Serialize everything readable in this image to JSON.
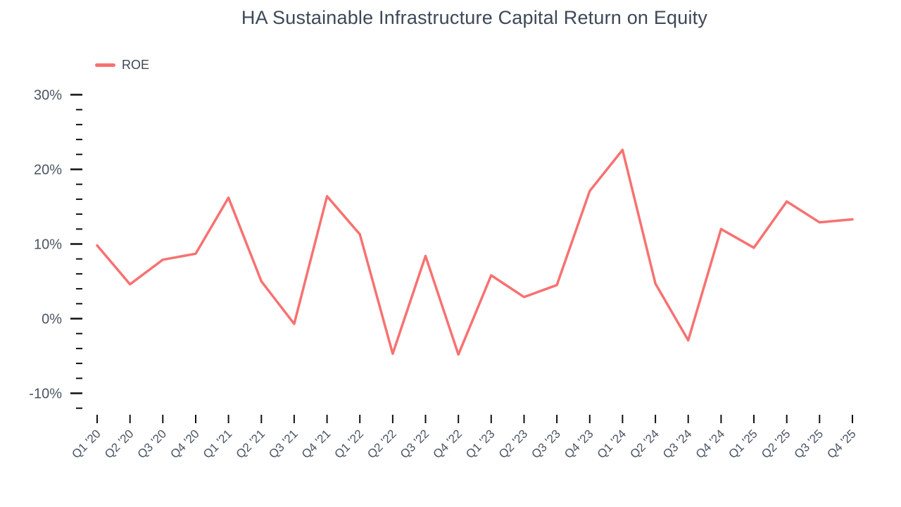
{
  "title": "HA Sustainable Infrastructure Capital Return on Equity",
  "legend": {
    "items": [
      {
        "label": "ROE",
        "color": "#f87171"
      }
    ]
  },
  "chart_data": {
    "type": "line",
    "title": "HA Sustainable Infrastructure Capital Return on Equity",
    "unit": "%",
    "grid": false,
    "legend_position": "top-left",
    "categories": [
      "Q1 '20",
      "Q2 '20",
      "Q3 '20",
      "Q4 '20",
      "Q1 '21",
      "Q2 '21",
      "Q3 '21",
      "Q4 '21",
      "Q1 '22",
      "Q2 '22",
      "Q3 '22",
      "Q4 '22",
      "Q1 '23",
      "Q2 '23",
      "Q3 '23",
      "Q4 '23",
      "Q1 '24",
      "Q2 '24",
      "Q3 '24",
      "Q4 '24",
      "Q1 '25",
      "Q2 '25",
      "Q3 '25",
      "Q4 '25"
    ],
    "series": [
      {
        "name": "ROE",
        "color": "#f87171",
        "values": [
          9.8,
          4.6,
          7.9,
          8.7,
          16.2,
          5.0,
          -0.7,
          16.4,
          11.3,
          -4.7,
          8.4,
          -4.8,
          5.8,
          2.9,
          4.5,
          17.1,
          22.6,
          4.7,
          -2.9,
          12.0,
          9.5,
          15.7,
          12.9,
          13.3
        ]
      }
    ],
    "y_axis": {
      "min": -12,
      "max": 30,
      "minor_step": 2,
      "major_ticks": [
        {
          "value": 30,
          "label": "30%"
        },
        {
          "value": 20,
          "label": "20%"
        },
        {
          "value": 10,
          "label": "10%"
        },
        {
          "value": 0,
          "label": "0%"
        },
        {
          "value": -10,
          "label": "-10%"
        }
      ]
    },
    "x_axis": {
      "label_rotation": -45
    },
    "colors": {
      "tick": "#111111",
      "label": "#4b5563",
      "title": "#3c4858"
    }
  }
}
